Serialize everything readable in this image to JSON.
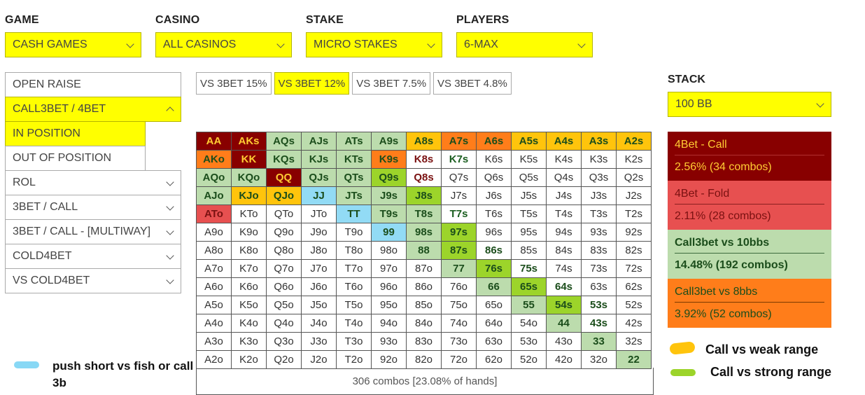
{
  "filters": [
    {
      "label": "GAME",
      "value": "CASH GAMES"
    },
    {
      "label": "CASINO",
      "value": "ALL CASINOS"
    },
    {
      "label": "STAKE",
      "value": "MICRO STAKES"
    },
    {
      "label": "PLAYERS",
      "value": "6-MAX"
    }
  ],
  "menu": {
    "open_raise": "OPEN RAISE",
    "call3bet": "CALL3BET / 4BET",
    "in_position": "IN POSITION",
    "out_of_position": "OUT OF POSITION",
    "rol": "ROL",
    "threebet_call": "3BET / CALL",
    "threebet_call_multiway": "3BET / CALL - [MULTIWAY]",
    "cold4bet": "COLD4BET",
    "vs_cold4bet": "VS COLD4BET"
  },
  "tabs": [
    {
      "label": "VS 3BET 15%",
      "active": false
    },
    {
      "label": "VS 3BET 12%",
      "active": true
    },
    {
      "label": "VS 3BET 7.5%",
      "active": false
    },
    {
      "label": "VS 3BET 4.8%",
      "active": false
    }
  ],
  "stack": {
    "label": "STACK",
    "value": "100 BB"
  },
  "colors": {
    "F": {
      "bg": "#880000",
      "fg": "#ffcc33"
    },
    "D": {
      "bg": "#e75050",
      "fg": "#7a1111"
    },
    "L": {
      "bg": "#bcdcad",
      "fg": "#1b4d1b"
    },
    "O": {
      "bg": "#ff7d1a",
      "fg": "#1b4d1b"
    },
    "Y": {
      "bg": "#ffc40c",
      "fg": "#1b4d1b"
    },
    "G": {
      "bg": "#9cd42a",
      "fg": "#1b4d1b"
    },
    "B": {
      "bg": "#92dbf5",
      "fg": "#1b4d1b"
    }
  },
  "matrix": [
    [
      [
        "AA",
        "F"
      ],
      [
        "AKs",
        "F"
      ],
      [
        "AQs",
        "L"
      ],
      [
        "AJs",
        "L"
      ],
      [
        "ATs",
        "L"
      ],
      [
        "A9s",
        "L"
      ],
      [
        "A8s",
        "Y"
      ],
      [
        "A7s",
        "O"
      ],
      [
        "A6s",
        "O"
      ],
      [
        "A5s",
        "Y"
      ],
      [
        "A4s",
        "Y"
      ],
      [
        "A3s",
        "Y"
      ],
      [
        "A2s",
        "Y"
      ]
    ],
    [
      [
        "AKo",
        "O"
      ],
      [
        "KK",
        "F"
      ],
      [
        "KQs",
        "L"
      ],
      [
        "KJs",
        "L"
      ],
      [
        "KTs",
        "L"
      ],
      [
        "K9s",
        "O"
      ],
      [
        "K8s",
        "-"
      ],
      [
        "K7s",
        "-"
      ],
      [
        "K6s",
        ""
      ],
      [
        "K5s",
        ""
      ],
      [
        "K4s",
        ""
      ],
      [
        "K3s",
        ""
      ],
      [
        "K2s",
        ""
      ]
    ],
    [
      [
        "AQo",
        "L"
      ],
      [
        "KQo",
        "L"
      ],
      [
        "QQ",
        "F"
      ],
      [
        "QJs",
        "L"
      ],
      [
        "QTs",
        "L"
      ],
      [
        "Q9s",
        "G"
      ],
      [
        "Q8s",
        "-"
      ],
      [
        "Q7s",
        ""
      ],
      [
        "Q6s",
        ""
      ],
      [
        "Q5s",
        ""
      ],
      [
        "Q4s",
        ""
      ],
      [
        "Q3s",
        ""
      ],
      [
        "Q2s",
        ""
      ]
    ],
    [
      [
        "AJo",
        "L"
      ],
      [
        "KJo",
        "Y"
      ],
      [
        "QJo",
        "Y"
      ],
      [
        "JJ",
        "B"
      ],
      [
        "JTs",
        "L"
      ],
      [
        "J9s",
        "L"
      ],
      [
        "J8s",
        "G"
      ],
      [
        "J7s",
        ""
      ],
      [
        "J6s",
        ""
      ],
      [
        "J5s",
        ""
      ],
      [
        "J4s",
        ""
      ],
      [
        "J3s",
        ""
      ],
      [
        "J2s",
        ""
      ]
    ],
    [
      [
        "ATo",
        "D"
      ],
      [
        "KTo",
        ""
      ],
      [
        "QTo",
        ""
      ],
      [
        "JTo",
        ""
      ],
      [
        "TT",
        "B"
      ],
      [
        "T9s",
        "L"
      ],
      [
        "T8s",
        "L"
      ],
      [
        "T7s",
        "-"
      ],
      [
        "T6s",
        ""
      ],
      [
        "T5s",
        ""
      ],
      [
        "T4s",
        ""
      ],
      [
        "T3s",
        ""
      ],
      [
        "T2s",
        ""
      ]
    ],
    [
      [
        "A9o",
        ""
      ],
      [
        "K9o",
        ""
      ],
      [
        "Q9o",
        ""
      ],
      [
        "J9o",
        ""
      ],
      [
        "T9o",
        ""
      ],
      [
        "99",
        "B"
      ],
      [
        "98s",
        "L"
      ],
      [
        "97s",
        "G"
      ],
      [
        "96s",
        ""
      ],
      [
        "95s",
        ""
      ],
      [
        "94s",
        ""
      ],
      [
        "93s",
        ""
      ],
      [
        "92s",
        ""
      ]
    ],
    [
      [
        "A8o",
        ""
      ],
      [
        "K8o",
        ""
      ],
      [
        "Q8o",
        ""
      ],
      [
        "J8o",
        ""
      ],
      [
        "T8o",
        ""
      ],
      [
        "98o",
        ""
      ],
      [
        "88",
        "L"
      ],
      [
        "87s",
        "G"
      ],
      [
        "86s",
        "-"
      ],
      [
        "85s",
        ""
      ],
      [
        "84s",
        ""
      ],
      [
        "83s",
        ""
      ],
      [
        "82s",
        ""
      ]
    ],
    [
      [
        "A7o",
        ""
      ],
      [
        "K7o",
        ""
      ],
      [
        "Q7o",
        ""
      ],
      [
        "J7o",
        ""
      ],
      [
        "T7o",
        ""
      ],
      [
        "97o",
        ""
      ],
      [
        "87o",
        ""
      ],
      [
        "77",
        "L"
      ],
      [
        "76s",
        "G"
      ],
      [
        "75s",
        "-"
      ],
      [
        "74s",
        ""
      ],
      [
        "73s",
        ""
      ],
      [
        "72s",
        ""
      ]
    ],
    [
      [
        "A6o",
        ""
      ],
      [
        "K6o",
        ""
      ],
      [
        "Q6o",
        ""
      ],
      [
        "J6o",
        ""
      ],
      [
        "T6o",
        ""
      ],
      [
        "96o",
        ""
      ],
      [
        "86o",
        ""
      ],
      [
        "76o",
        ""
      ],
      [
        "66",
        "L"
      ],
      [
        "65s",
        "G"
      ],
      [
        "64s",
        "-"
      ],
      [
        "63s",
        ""
      ],
      [
        "62s",
        ""
      ]
    ],
    [
      [
        "A5o",
        ""
      ],
      [
        "K5o",
        ""
      ],
      [
        "Q5o",
        ""
      ],
      [
        "J5o",
        ""
      ],
      [
        "T5o",
        ""
      ],
      [
        "95o",
        ""
      ],
      [
        "85o",
        ""
      ],
      [
        "75o",
        ""
      ],
      [
        "65o",
        ""
      ],
      [
        "55",
        "L"
      ],
      [
        "54s",
        "G"
      ],
      [
        "53s",
        "-"
      ],
      [
        "52s",
        ""
      ]
    ],
    [
      [
        "A4o",
        ""
      ],
      [
        "K4o",
        ""
      ],
      [
        "Q4o",
        ""
      ],
      [
        "J4o",
        ""
      ],
      [
        "T4o",
        ""
      ],
      [
        "94o",
        ""
      ],
      [
        "84o",
        ""
      ],
      [
        "74o",
        ""
      ],
      [
        "64o",
        ""
      ],
      [
        "54o",
        ""
      ],
      [
        "44",
        "L"
      ],
      [
        "43s",
        "-"
      ],
      [
        "42s",
        ""
      ]
    ],
    [
      [
        "A3o",
        ""
      ],
      [
        "K3o",
        ""
      ],
      [
        "Q3o",
        ""
      ],
      [
        "J3o",
        ""
      ],
      [
        "T3o",
        ""
      ],
      [
        "93o",
        ""
      ],
      [
        "83o",
        ""
      ],
      [
        "73o",
        ""
      ],
      [
        "63o",
        ""
      ],
      [
        "53o",
        ""
      ],
      [
        "43o",
        ""
      ],
      [
        "33",
        "L"
      ],
      [
        "32s",
        ""
      ]
    ],
    [
      [
        "A2o",
        ""
      ],
      [
        "K2o",
        ""
      ],
      [
        "Q2o",
        ""
      ],
      [
        "J2o",
        ""
      ],
      [
        "T2o",
        ""
      ],
      [
        "92o",
        ""
      ],
      [
        "82o",
        ""
      ],
      [
        "72o",
        ""
      ],
      [
        "62o",
        ""
      ],
      [
        "52o",
        ""
      ],
      [
        "42o",
        ""
      ],
      [
        "32o",
        ""
      ],
      [
        "22",
        "L"
      ]
    ]
  ],
  "footer": "306 combos [23.08% of hands]",
  "stats": [
    {
      "title": "4Bet - Call",
      "value": "2.56%  (34 combos)",
      "bg": "#880000",
      "fg": "#ffcc33",
      "line": "#b03030",
      "bold": false
    },
    {
      "title": "4Bet - Fold",
      "value": "2.11%  (28 combos)",
      "bg": "#e75050",
      "fg": "#7a1111",
      "line": "#8a2020",
      "bold": false
    },
    {
      "title": "Call3bet vs 10bbs",
      "value": "14.48%  (192 combos)",
      "bg": "#bcdcad",
      "fg": "#1b4d1b",
      "line": "#3d6b3d",
      "bold": true
    },
    {
      "title": "Call3bet vs 8bbs",
      "value": "3.92%  (52 combos)",
      "bg": "#ff7d1a",
      "fg": "#1b4d1b",
      "line": "#7a3a00",
      "bold": false
    }
  ],
  "legend": {
    "blue": "push short vs fish or call 3b",
    "yellow": "Call vs weak range",
    "green": "Call vs strong range"
  }
}
